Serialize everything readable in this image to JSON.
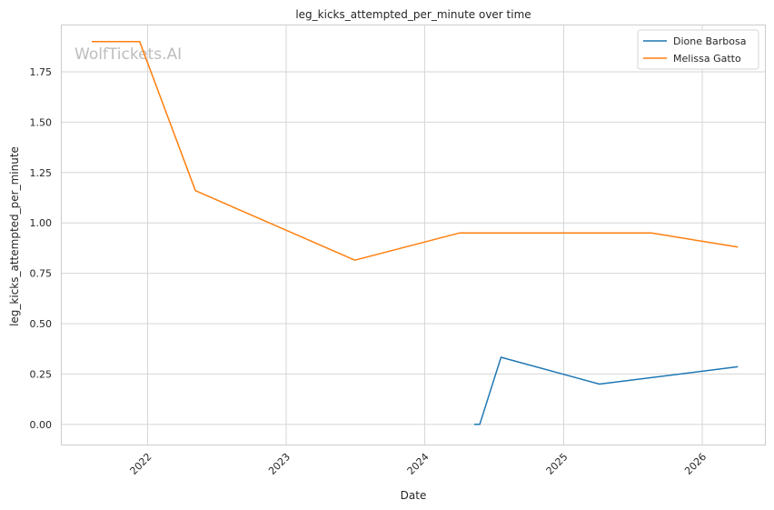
{
  "chart_data": {
    "type": "line",
    "title": "leg_kicks_attempted_per_minute over time",
    "xlabel": "Date",
    "ylabel": "leg_kicks_attempted_per_minute",
    "watermark": "WolfTickets.AI",
    "x_ticks": [
      "2022",
      "2023",
      "2024",
      "2025",
      "2026"
    ],
    "y_ticks": [
      "0.00",
      "0.25",
      "0.50",
      "0.75",
      "1.00",
      "1.25",
      "1.50",
      "1.75"
    ],
    "ylim": [
      -0.1,
      1.98
    ],
    "xlim": [
      "2021-05-20",
      "2026-06-15"
    ],
    "grid": true,
    "legend_position": "top-right",
    "series": [
      {
        "name": "Dione Barbosa",
        "color": "#1f77b4",
        "points": [
          {
            "x": "2024-05-10",
            "y": 0.0
          },
          {
            "x": "2024-05-25",
            "y": 0.0
          },
          {
            "x": "2024-07-20",
            "y": 0.333
          },
          {
            "x": "2025-04-05",
            "y": 0.2
          },
          {
            "x": "2026-04-05",
            "y": 0.286
          }
        ]
      },
      {
        "name": "Melissa Gatto",
        "color": "#ff7f0e",
        "points": [
          {
            "x": "2021-08-07",
            "y": 1.9
          },
          {
            "x": "2021-12-11",
            "y": 1.9
          },
          {
            "x": "2022-05-07",
            "y": 1.16
          },
          {
            "x": "2023-07-01",
            "y": 0.815
          },
          {
            "x": "2024-04-01",
            "y": 0.95
          },
          {
            "x": "2025-08-20",
            "y": 0.95
          },
          {
            "x": "2026-04-05",
            "y": 0.88
          }
        ]
      }
    ]
  }
}
